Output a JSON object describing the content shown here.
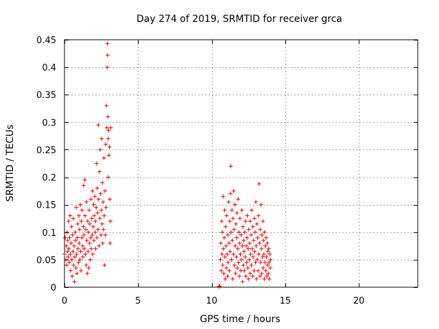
{
  "chart_data": {
    "type": "scatter",
    "title": "Day 274 of 2019, SRMTID for receiver grca",
    "xlabel": "GPS time / hours",
    "ylabel": "SRMTID / TECUs",
    "xlim": [
      0,
      24
    ],
    "ylim": [
      0,
      0.45
    ],
    "xticks": [
      0,
      5,
      10,
      15,
      20
    ],
    "xtick_labels": [
      "0",
      "5",
      "10",
      "15",
      "20"
    ],
    "yticks": [
      0,
      0.05,
      0.1,
      0.15,
      0.2,
      0.25,
      0.3,
      0.35,
      0.4,
      0.45
    ],
    "ytick_labels": [
      "0",
      "0.05",
      "0.1",
      "0.15",
      "0.2",
      "0.25",
      "0.3",
      "0.35",
      "0.4",
      "0.45"
    ],
    "grid": true,
    "marker": "plus",
    "color": "#e00000",
    "series": [
      {
        "name": "SRMTID",
        "points": [
          [
            0.0,
            0.06
          ],
          [
            0.05,
            0.09
          ],
          [
            0.1,
            0.05
          ],
          [
            0.12,
            0.075
          ],
          [
            0.15,
            0.04
          ],
          [
            0.18,
            0.1
          ],
          [
            0.2,
            0.065
          ],
          [
            0.22,
            0.085
          ],
          [
            0.25,
            0.055
          ],
          [
            0.28,
            0.12
          ],
          [
            0.3,
            0.07
          ],
          [
            0.32,
            0.045
          ],
          [
            0.35,
            0.09
          ],
          [
            0.38,
            0.13
          ],
          [
            0.4,
            0.06
          ],
          [
            0.42,
            0.03
          ],
          [
            0.45,
            0.08
          ],
          [
            0.48,
            0.11
          ],
          [
            0.5,
            0.05
          ],
          [
            0.52,
            0.02
          ],
          [
            0.55,
            0.095
          ],
          [
            0.58,
            0.065
          ],
          [
            0.6,
            0.125
          ],
          [
            0.62,
            0.04
          ],
          [
            0.65,
            0.075
          ],
          [
            0.68,
            0.01
          ],
          [
            0.7,
            0.055
          ],
          [
            0.72,
            0.1
          ],
          [
            0.75,
            0.085
          ],
          [
            0.78,
            0.035
          ],
          [
            0.8,
            0.145
          ],
          [
            0.82,
            0.06
          ],
          [
            0.85,
            0.025
          ],
          [
            0.88,
            0.09
          ],
          [
            0.9,
            0.115
          ],
          [
            0.92,
            0.07
          ],
          [
            0.95,
            0.045
          ],
          [
            0.98,
            0.13
          ],
          [
            1.0,
            0.08
          ],
          [
            1.02,
            0.105
          ],
          [
            1.05,
            0.05
          ],
          [
            1.08,
            0.15
          ],
          [
            1.1,
            0.065
          ],
          [
            1.12,
            0.03
          ],
          [
            1.15,
            0.12
          ],
          [
            1.18,
            0.09
          ],
          [
            1.2,
            0.14
          ],
          [
            1.22,
            0.075
          ],
          [
            1.25,
            0.055
          ],
          [
            1.28,
            0.11
          ],
          [
            1.3,
            0.185
          ],
          [
            1.32,
            0.095
          ],
          [
            1.35,
            0.07
          ],
          [
            1.38,
            0.195
          ],
          [
            1.4,
            0.13
          ],
          [
            1.42,
            0.06
          ],
          [
            1.45,
            0.105
          ],
          [
            1.48,
            0.04
          ],
          [
            1.5,
            0.155
          ],
          [
            1.52,
            0.085
          ],
          [
            1.55,
            0.025
          ],
          [
            1.58,
            0.12
          ],
          [
            1.6,
            0.065
          ],
          [
            1.62,
            0.1
          ],
          [
            1.65,
            0.035
          ],
          [
            1.68,
            0.14
          ],
          [
            1.7,
            0.08
          ],
          [
            1.72,
            0.115
          ],
          [
            1.75,
            0.05
          ],
          [
            1.78,
            0.09
          ],
          [
            1.8,
            0.16
          ],
          [
            1.82,
            0.07
          ],
          [
            1.85,
            0.125
          ],
          [
            1.88,
            0.095
          ],
          [
            1.9,
            0.175
          ],
          [
            1.92,
            0.06
          ],
          [
            1.95,
            0.11
          ],
          [
            1.98,
            0.15
          ],
          [
            2.0,
            0.085
          ],
          [
            2.02,
            0.13
          ],
          [
            2.05,
            0.165
          ],
          [
            2.08,
            0.1
          ],
          [
            2.1,
            0.12
          ],
          [
            2.12,
            0.07
          ],
          [
            2.15,
            0.145
          ],
          [
            2.18,
            0.225
          ],
          [
            2.2,
            0.09
          ],
          [
            2.22,
            0.18
          ],
          [
            2.25,
            0.135
          ],
          [
            2.28,
            0.105
          ],
          [
            2.3,
            0.295
          ],
          [
            2.32,
            0.16
          ],
          [
            2.35,
            0.075
          ],
          [
            2.38,
            0.21
          ],
          [
            2.4,
            0.125
          ],
          [
            2.42,
            0.25
          ],
          [
            2.45,
            0.17
          ],
          [
            2.48,
            0.095
          ],
          [
            2.5,
            0.14
          ],
          [
            2.52,
            0.27
          ],
          [
            2.55,
            0.115
          ],
          [
            2.58,
            0.19
          ],
          [
            2.6,
            0.08
          ],
          [
            2.62,
            0.155
          ],
          [
            2.65,
            0.105
          ],
          [
            2.68,
            0.235
          ],
          [
            2.7,
            0.13
          ],
          [
            2.72,
            0.04
          ],
          [
            2.75,
            0.175
          ],
          [
            2.78,
            0.095
          ],
          [
            2.8,
            0.26
          ],
          [
            2.82,
            0.145
          ],
          [
            2.85,
            0.33
          ],
          [
            2.88,
            0.29
          ],
          [
            2.9,
            0.4
          ],
          [
            2.91,
            0.443
          ],
          [
            2.93,
            0.422
          ],
          [
            2.95,
            0.31
          ],
          [
            2.97,
            0.27
          ],
          [
            2.98,
            0.2
          ],
          [
            3.0,
            0.285
          ],
          [
            3.02,
            0.24
          ],
          [
            3.05,
            0.255
          ],
          [
            3.08,
            0.16
          ],
          [
            3.1,
            0.08
          ],
          [
            3.12,
            0.12
          ],
          [
            3.15,
            0.29
          ],
          [
            10.5,
            0.001
          ],
          [
            10.55,
            0.002
          ],
          [
            10.6,
            0.05
          ],
          [
            10.62,
            0.08
          ],
          [
            10.65,
            0.03
          ],
          [
            10.68,
            0.12
          ],
          [
            10.7,
            0.06
          ],
          [
            10.72,
            0.1
          ],
          [
            10.75,
            0.04
          ],
          [
            10.78,
            0.165
          ],
          [
            10.8,
            0.07
          ],
          [
            10.82,
            0.025
          ],
          [
            10.85,
            0.09
          ],
          [
            10.88,
            0.14
          ],
          [
            10.9,
            0.055
          ],
          [
            10.92,
            0.015
          ],
          [
            10.95,
            0.11
          ],
          [
            10.98,
            0.075
          ],
          [
            11.0,
            0.035
          ],
          [
            11.02,
            0.13
          ],
          [
            11.05,
            0.06
          ],
          [
            11.08,
            0.02
          ],
          [
            11.1,
            0.095
          ],
          [
            11.12,
            0.045
          ],
          [
            11.15,
            0.155
          ],
          [
            11.18,
            0.08
          ],
          [
            11.2,
            0.03
          ],
          [
            11.22,
            0.12
          ],
          [
            11.25,
            0.065
          ],
          [
            11.28,
            0.17
          ],
          [
            11.3,
            0.22
          ],
          [
            11.32,
            0.1
          ],
          [
            11.35,
            0.05
          ],
          [
            11.38,
            0.14
          ],
          [
            11.4,
            0.085
          ],
          [
            11.42,
            0.015
          ],
          [
            11.45,
            0.125
          ],
          [
            11.48,
            0.06
          ],
          [
            11.5,
            0.175
          ],
          [
            11.52,
            0.105
          ],
          [
            11.55,
            0.04
          ],
          [
            11.58,
            0.15
          ],
          [
            11.6,
            0.075
          ],
          [
            11.62,
            0.025
          ],
          [
            11.65,
            0.115
          ],
          [
            11.68,
            0.055
          ],
          [
            11.7,
            0.09
          ],
          [
            11.72,
            0.135
          ],
          [
            11.75,
            0.035
          ],
          [
            11.78,
            0.07
          ],
          [
            11.8,
            0.16
          ],
          [
            11.82,
            0.045
          ],
          [
            11.85,
            0.1
          ],
          [
            11.88,
            0.02
          ],
          [
            11.9,
            0.08
          ],
          [
            11.92,
            0.125
          ],
          [
            11.95,
            0.06
          ],
          [
            11.98,
            0.03
          ],
          [
            12.0,
            0.095
          ],
          [
            12.02,
            0.05
          ],
          [
            12.05,
            0.14
          ],
          [
            12.08,
            0.075
          ],
          [
            12.1,
            0.01
          ],
          [
            12.12,
            0.11
          ],
          [
            12.15,
            0.04
          ],
          [
            12.18,
            0.085
          ],
          [
            12.2,
            0.065
          ],
          [
            12.22,
            0.03
          ],
          [
            12.25,
            0.1
          ],
          [
            12.28,
            0.055
          ],
          [
            12.3,
            0.12
          ],
          [
            12.32,
            0.02
          ],
          [
            12.35,
            0.075
          ],
          [
            12.38,
            0.045
          ],
          [
            12.4,
            0.09
          ],
          [
            12.42,
            0.13
          ],
          [
            12.45,
            0.035
          ],
          [
            12.48,
            0.07
          ],
          [
            12.5,
            0.015
          ],
          [
            12.52,
            0.105
          ],
          [
            12.55,
            0.05
          ],
          [
            12.58,
            0.08
          ],
          [
            12.6,
            0.025
          ],
          [
            12.62,
            0.12
          ],
          [
            12.65,
            0.06
          ],
          [
            12.68,
            0.095
          ],
          [
            12.7,
            0.04
          ],
          [
            12.72,
            0.14
          ],
          [
            12.75,
            0.07
          ],
          [
            12.78,
            0.02
          ],
          [
            12.8,
            0.11
          ],
          [
            12.82,
            0.055
          ],
          [
            12.85,
            0.085
          ],
          [
            12.88,
            0.03
          ],
          [
            12.9,
            0.125
          ],
          [
            12.92,
            0.065
          ],
          [
            12.95,
            0.1
          ],
          [
            12.98,
            0.045
          ],
          [
            13.0,
            0.155
          ],
          [
            13.02,
            0.075
          ],
          [
            13.05,
            0.015
          ],
          [
            13.08,
            0.115
          ],
          [
            13.1,
            0.05
          ],
          [
            13.12,
            0.09
          ],
          [
            13.15,
            0.03
          ],
          [
            13.18,
            0.13
          ],
          [
            13.2,
            0.06
          ],
          [
            13.22,
            0.188
          ],
          [
            13.25,
            0.08
          ],
          [
            13.28,
            0.02
          ],
          [
            13.3,
            0.105
          ],
          [
            13.32,
            0.045
          ],
          [
            13.35,
            0.15
          ],
          [
            13.38,
            0.07
          ],
          [
            13.4,
            0.025
          ],
          [
            13.42,
            0.095
          ],
          [
            13.45,
            0.055
          ],
          [
            13.48,
            0.12
          ],
          [
            13.5,
            0.035
          ],
          [
            13.52,
            0.085
          ],
          [
            13.55,
            0.06
          ],
          [
            13.58,
            0.015
          ],
          [
            13.6,
            0.1
          ],
          [
            13.62,
            0.045
          ],
          [
            13.65,
            0.075
          ],
          [
            13.68,
            0.03
          ],
          [
            13.7,
            0.09
          ],
          [
            13.72,
            0.055
          ],
          [
            13.75,
            0.02
          ],
          [
            13.78,
            0.08
          ],
          [
            13.8,
            0.04
          ],
          [
            13.82,
            0.065
          ],
          [
            13.85,
            0.025
          ],
          [
            13.88,
            0.07
          ],
          [
            13.9,
            0.045
          ],
          [
            13.92,
            0.015
          ],
          [
            13.95,
            0.06
          ],
          [
            13.98,
            0.035
          ],
          [
            14.0,
            0.05
          ]
        ]
      }
    ]
  }
}
